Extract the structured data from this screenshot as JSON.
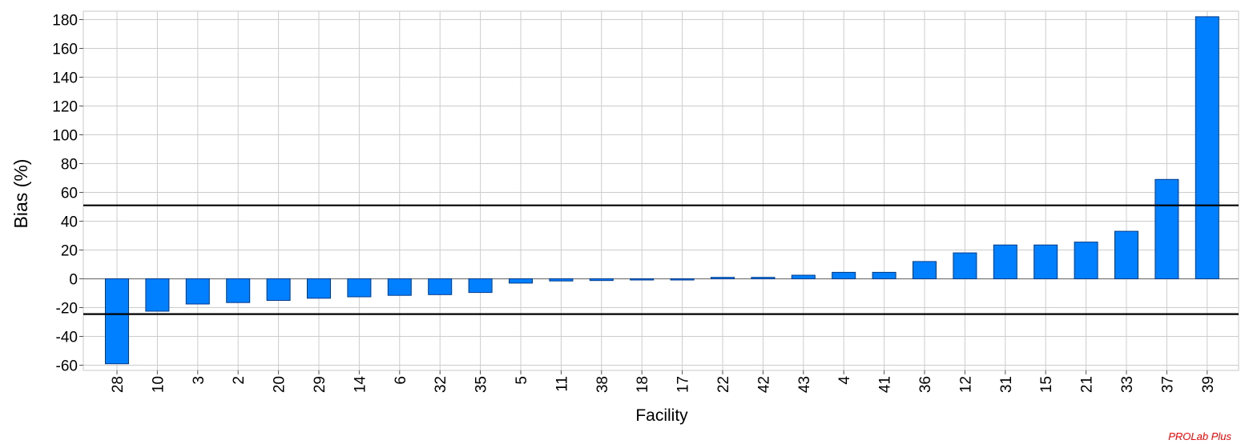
{
  "chart_data": {
    "type": "bar",
    "xlabel": "Facility",
    "ylabel": "Bias (%)",
    "ylim": [
      -63,
      185
    ],
    "yticks": [
      -60,
      -40,
      -20,
      0,
      20,
      40,
      60,
      80,
      100,
      120,
      140,
      160,
      180
    ],
    "grid": true,
    "categories": [
      "28",
      "10",
      "3",
      "2",
      "20",
      "29",
      "14",
      "6",
      "32",
      "35",
      "5",
      "11",
      "38",
      "18",
      "17",
      "22",
      "42",
      "43",
      "4",
      "41",
      "36",
      "12",
      "31",
      "15",
      "21",
      "33",
      "37",
      "39"
    ],
    "values": [
      -59,
      -22.5,
      -17.5,
      -16.5,
      -15,
      -13.5,
      -12.5,
      -11.5,
      -11,
      -9.5,
      -3,
      -1.5,
      -1.2,
      -0.8,
      -0.5,
      1,
      1,
      2.5,
      4.5,
      4.5,
      12,
      18,
      23.5,
      23.5,
      25.5,
      33,
      69,
      182
    ],
    "limit_lines": [
      51,
      -24.5
    ],
    "bar_color": "#0080ff",
    "bar_edge_color": "#003a8c"
  },
  "watermark": "PROLab Plus"
}
